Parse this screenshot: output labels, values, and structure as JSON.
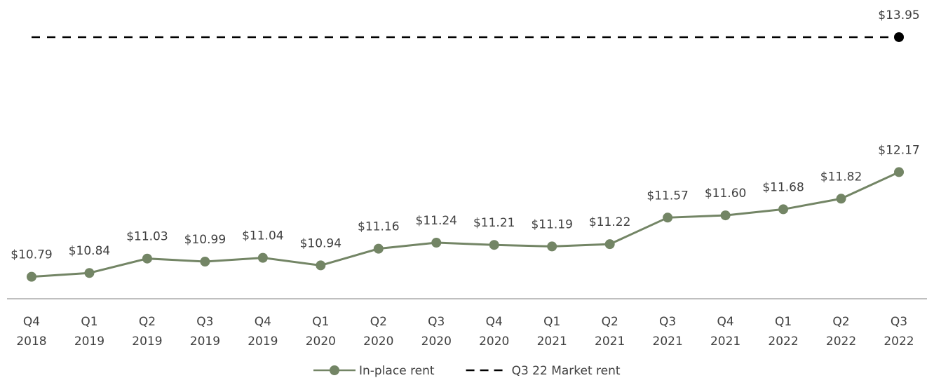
{
  "chart_data": {
    "type": "line",
    "categories": [
      "Q4 2018",
      "Q1 2019",
      "Q2 2019",
      "Q3 2019",
      "Q4 2019",
      "Q1 2020",
      "Q2 2020",
      "Q3 2020",
      "Q4 2020",
      "Q1 2021",
      "Q2 2021",
      "Q3 2021",
      "Q4 2021",
      "Q1 2022",
      "Q2 2022",
      "Q3 2022"
    ],
    "series": [
      {
        "name": "In-place rent",
        "color": "#738565",
        "dash": false,
        "values": [
          10.79,
          10.84,
          11.03,
          10.99,
          11.04,
          10.94,
          11.16,
          11.24,
          11.21,
          11.19,
          11.22,
          11.57,
          11.6,
          11.68,
          11.82,
          12.17
        ],
        "value_labels": [
          "$10.79",
          "$10.84",
          "$11.03",
          "$10.99",
          "$11.04",
          "$10.94",
          "$11.16",
          "$11.24",
          "$11.21",
          "$11.19",
          "$11.22",
          "$11.57",
          "$11.60",
          "$11.68",
          "$11.82",
          "$12.17"
        ]
      },
      {
        "name": "Q3 22 Market rent",
        "color": "#000000",
        "dash": true,
        "values": [
          13.95,
          13.95,
          13.95,
          13.95,
          13.95,
          13.95,
          13.95,
          13.95,
          13.95,
          13.95,
          13.95,
          13.95,
          13.95,
          13.95,
          13.95,
          13.95
        ],
        "value_labels": [
          null,
          null,
          null,
          null,
          null,
          null,
          null,
          null,
          null,
          null,
          null,
          null,
          null,
          null,
          null,
          "$13.95"
        ]
      }
    ],
    "ylim": [
      10.5,
      14.44
    ],
    "legend": "bottom"
  }
}
